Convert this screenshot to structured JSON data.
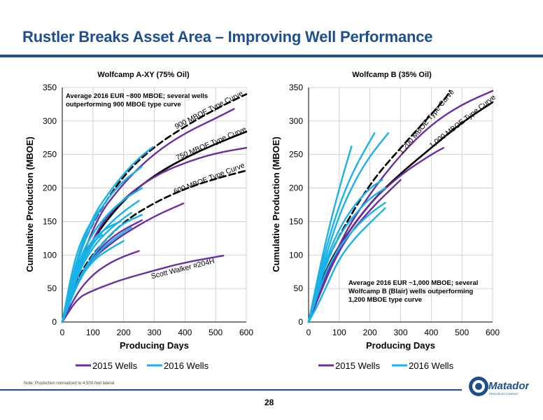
{
  "slide": {
    "title": "Rustler Breaks Asset Area – Improving Well Performance",
    "note": "Note: Production normalized to 4,500-foot lateral.",
    "page_number": "28",
    "logo_text": "Matador",
    "logo_tagline": "RESOURCES COMPANY",
    "colors": {
      "brand": "#1f4e8c",
      "wells_2015": "#6a2fa0",
      "wells_2016": "#19b2e8"
    }
  },
  "chart_data": [
    {
      "type": "line",
      "title": "Wolfcamp A-XY (75% Oil)",
      "xlabel": "Producing Days",
      "ylabel": "Cumulative Production (MBOE)",
      "xlim": [
        0,
        600
      ],
      "ylim": [
        0,
        350
      ],
      "xticks": [
        "0",
        "100",
        "200",
        "300",
        "400",
        "500",
        "600"
      ],
      "yticks": [
        "0",
        "50",
        "100",
        "150",
        "200",
        "250",
        "300",
        "350"
      ],
      "grid": true,
      "legend": "bottom",
      "legend_entries": [
        {
          "label": "2015 Wells",
          "color": "#6a2fa0"
        },
        {
          "label": "2016 Wells",
          "color": "#19b2e8"
        }
      ],
      "annotations": [
        {
          "id": "note",
          "text": "Average 2016 EUR ~800 MBOE; several wells\noutperforming 900 MBOE type curve"
        },
        {
          "id": "tc900",
          "text": "900 MBOE Type Curve"
        },
        {
          "id": "tc750",
          "text": "750 MBOE Type Curve"
        },
        {
          "id": "tc600",
          "text": "600 MBOE Type Curve"
        },
        {
          "id": "scott",
          "text": "Scott Walker #204H"
        }
      ],
      "series": [
        {
          "group": "type_curve",
          "style": "dashed",
          "values": [
            [
              0,
              0
            ],
            [
              50,
              95
            ],
            [
              100,
              150
            ],
            [
              200,
              220
            ],
            [
              300,
              262
            ],
            [
              400,
              292
            ],
            [
              500,
              318
            ],
            [
              600,
              340
            ]
          ]
        },
        {
          "group": "type_curve",
          "style": "solid",
          "values": [
            [
              0,
              0
            ],
            [
              50,
              78
            ],
            [
              100,
              125
            ],
            [
              200,
              183
            ],
            [
              300,
              219
            ],
            [
              400,
              245
            ],
            [
              500,
              266
            ],
            [
              600,
              284
            ]
          ]
        },
        {
          "group": "type_curve",
          "style": "dashed",
          "values": [
            [
              0,
              0
            ],
            [
              50,
              65
            ],
            [
              100,
              103
            ],
            [
              200,
              150
            ],
            [
              300,
              178
            ],
            [
              400,
              199
            ],
            [
              500,
              214
            ],
            [
              600,
              226
            ]
          ]
        },
        {
          "group": "2015",
          "values": [
            [
              0,
              0
            ],
            [
              100,
              148
            ],
            [
              200,
              208
            ],
            [
              300,
              252
            ],
            [
              400,
              282
            ],
            [
              500,
              304
            ],
            [
              560,
              318
            ]
          ]
        },
        {
          "group": "2015",
          "values": [
            [
              0,
              0
            ],
            [
              100,
              132
            ],
            [
              200,
              185
            ],
            [
              300,
              218
            ],
            [
              400,
              238
            ],
            [
              500,
              252
            ],
            [
              600,
              260
            ]
          ]
        },
        {
          "group": "2015",
          "values": [
            [
              0,
              0
            ],
            [
              50,
              62
            ],
            [
              100,
              95
            ],
            [
              150,
              114
            ],
            [
              200,
              131
            ],
            [
              300,
              158
            ],
            [
              395,
              177
            ]
          ]
        },
        {
          "group": "2015",
          "values": [
            [
              0,
              0
            ],
            [
              50,
              45
            ],
            [
              100,
              71
            ],
            [
              150,
              87
            ],
            [
              200,
              98
            ],
            [
              250,
              106
            ]
          ]
        },
        {
          "group": "2015",
          "values": [
            [
              0,
              0
            ],
            [
              50,
              36
            ],
            [
              100,
              47
            ],
            [
              150,
              56
            ],
            [
              200,
              64
            ],
            [
              300,
              77
            ],
            [
              400,
              89
            ],
            [
              525,
              99
            ]
          ]
        },
        {
          "group": "2015",
          "values": [
            [
              0,
              0
            ],
            [
              50,
              60
            ],
            [
              100,
              98
            ],
            [
              150,
              122
            ],
            [
              200,
              138
            ],
            [
              260,
              152
            ]
          ]
        },
        {
          "group": "2016",
          "values": [
            [
              0,
              0
            ],
            [
              50,
              100
            ],
            [
              100,
              158
            ],
            [
              150,
              192
            ],
            [
              200,
              221
            ],
            [
              250,
              245
            ],
            [
              295,
              261
            ]
          ]
        },
        {
          "group": "2016",
          "values": [
            [
              0,
              0
            ],
            [
              50,
              95
            ],
            [
              100,
              150
            ],
            [
              150,
              186
            ],
            [
              200,
              211
            ],
            [
              260,
              232
            ]
          ]
        },
        {
          "group": "2016",
          "values": [
            [
              0,
              0
            ],
            [
              50,
              88
            ],
            [
              100,
              134
            ],
            [
              150,
              162
            ],
            [
              200,
              183
            ],
            [
              260,
              200
            ]
          ]
        },
        {
          "group": "2016",
          "values": [
            [
              0,
              0
            ],
            [
              50,
              75
            ],
            [
              100,
              118
            ],
            [
              150,
              145
            ],
            [
              200,
              165
            ],
            [
              250,
              181
            ]
          ]
        },
        {
          "group": "2016",
          "values": [
            [
              0,
              0
            ],
            [
              50,
              72
            ],
            [
              100,
              112
            ],
            [
              150,
              137
            ],
            [
              200,
              155
            ],
            [
              225,
              163
            ]
          ]
        },
        {
          "group": "2016",
          "values": [
            [
              0,
              0
            ],
            [
              50,
              62
            ],
            [
              100,
              100
            ],
            [
              150,
              128
            ],
            [
              200,
              148
            ],
            [
              260,
              160
            ]
          ]
        },
        {
          "group": "2016",
          "values": [
            [
              0,
              0
            ],
            [
              40,
              95
            ],
            [
              80,
              140
            ],
            [
              125,
              169
            ]
          ]
        },
        {
          "group": "2016",
          "values": [
            [
              0,
              0
            ],
            [
              50,
              58
            ],
            [
              100,
              95
            ],
            [
              150,
              118
            ],
            [
              200,
              134
            ],
            [
              225,
              141
            ]
          ]
        },
        {
          "group": "2016",
          "values": [
            [
              0,
              0
            ],
            [
              50,
              85
            ],
            [
              100,
              125
            ],
            [
              150,
              142
            ],
            [
              190,
              150
            ]
          ]
        },
        {
          "group": "2016",
          "values": [
            [
              0,
              0
            ],
            [
              50,
              60
            ],
            [
              100,
              92
            ],
            [
              150,
              108
            ],
            [
              200,
              121
            ]
          ]
        },
        {
          "group": "2016",
          "values": [
            [
              0,
              0
            ],
            [
              50,
              80
            ],
            [
              100,
              120
            ],
            [
              130,
              130
            ]
          ]
        }
      ]
    },
    {
      "type": "line",
      "title": "Wolfcamp B (35% Oil)",
      "xlabel": "Producing Days",
      "ylabel": "Cumulative Production (MBOE)",
      "xlim": [
        0,
        600
      ],
      "ylim": [
        0,
        350
      ],
      "xticks": [
        "0",
        "100",
        "200",
        "300",
        "400",
        "500",
        "600"
      ],
      "yticks": [
        "0",
        "50",
        "100",
        "150",
        "200",
        "250",
        "300",
        "350"
      ],
      "grid": true,
      "legend": "bottom",
      "legend_entries": [
        {
          "label": "2015 Wells",
          "color": "#6a2fa0"
        },
        {
          "label": "2016 Wells",
          "color": "#19b2e8"
        }
      ],
      "annotations": [
        {
          "id": "note",
          "text": "Average 2016 EUR ~1,000 MBOE; several\nWolfcamp B (Blair) wells outperforming\n1,200 MBOE type curve"
        },
        {
          "id": "tc1200",
          "text": "1,200 MBOE Type Curve"
        },
        {
          "id": "tc1000",
          "text": "1,000 MBOE Type Curve"
        }
      ],
      "series": [
        {
          "group": "type_curve",
          "style": "dashed",
          "values": [
            [
              0,
              0
            ],
            [
              50,
              80
            ],
            [
              100,
              130
            ],
            [
              200,
              207
            ],
            [
              300,
              260
            ],
            [
              400,
              310
            ],
            [
              450,
              336
            ],
            [
              460,
              345
            ]
          ]
        },
        {
          "group": "type_curve",
          "style": "solid",
          "values": [
            [
              0,
              0
            ],
            [
              50,
              72
            ],
            [
              100,
              115
            ],
            [
              200,
              178
            ],
            [
              300,
              222
            ],
            [
              400,
              260
            ],
            [
              500,
              298
            ],
            [
              600,
              328
            ]
          ]
        },
        {
          "group": "2015",
          "values": [
            [
              0,
              0
            ],
            [
              100,
              120
            ],
            [
              200,
              192
            ],
            [
              300,
              250
            ],
            [
              400,
              295
            ],
            [
              500,
              325
            ],
            [
              600,
              345
            ]
          ]
        },
        {
          "group": "2015",
          "values": [
            [
              0,
              0
            ],
            [
              100,
              116
            ],
            [
              200,
              178
            ],
            [
              300,
              220
            ],
            [
              400,
              250
            ],
            [
              440,
              260
            ]
          ]
        },
        {
          "group": "2015",
          "values": [
            [
              0,
              0
            ],
            [
              100,
              112
            ],
            [
              200,
              168
            ],
            [
              300,
              212
            ]
          ]
        },
        {
          "group": "2016",
          "values": [
            [
              0,
              0
            ],
            [
              50,
              110
            ],
            [
              100,
              200
            ],
            [
              140,
              262
            ]
          ]
        },
        {
          "group": "2016",
          "values": [
            [
              0,
              0
            ],
            [
              50,
              100
            ],
            [
              100,
              175
            ],
            [
              150,
              230
            ],
            [
              215,
              282
            ]
          ]
        },
        {
          "group": "2016",
          "values": [
            [
              0,
              0
            ],
            [
              50,
              90
            ],
            [
              100,
              160
            ],
            [
              150,
              210
            ],
            [
              200,
              248
            ],
            [
              260,
              282
            ]
          ]
        },
        {
          "group": "2016",
          "values": [
            [
              0,
              0
            ],
            [
              50,
              85
            ],
            [
              100,
              140
            ],
            [
              150,
              175
            ],
            [
              200,
              200
            ],
            [
              240,
              212
            ]
          ]
        },
        {
          "group": "2016",
          "values": [
            [
              0,
              0
            ],
            [
              50,
              80
            ],
            [
              100,
              130
            ],
            [
              150,
              160
            ],
            [
              200,
              185
            ],
            [
              250,
              200
            ]
          ]
        },
        {
          "group": "2016",
          "values": [
            [
              0,
              0
            ],
            [
              50,
              70
            ],
            [
              100,
              112
            ],
            [
              150,
              140
            ],
            [
              200,
              162
            ],
            [
              250,
              178
            ]
          ]
        },
        {
          "group": "2016",
          "values": [
            [
              0,
              0
            ],
            [
              30,
              25
            ],
            [
              60,
              55
            ],
            [
              100,
              95
            ],
            [
              150,
              125
            ],
            [
              200,
              148
            ],
            [
              250,
              170
            ]
          ]
        }
      ]
    }
  ]
}
